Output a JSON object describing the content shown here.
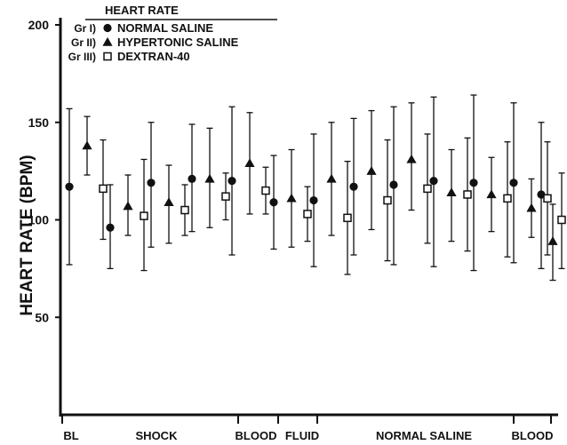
{
  "chart_data": {
    "type": "scatter",
    "title": "HEART RATE",
    "ylabel": "HEART RATE (BPM)",
    "xlabel": "",
    "ylim": [
      0,
      200
    ],
    "yticks": [
      50,
      100,
      150,
      200
    ],
    "grid": false,
    "legend_placement": "top-left",
    "phases": [
      "BL",
      "SHOCK",
      "BLOOD",
      "FLUID",
      "NORMAL SALINE",
      "BLOOD"
    ],
    "series": [
      {
        "name": "NORMAL SALINE",
        "group": "Gr I)",
        "marker": "circle",
        "values": [
          117,
          96,
          119,
          121,
          120,
          109,
          110,
          117,
          118,
          120,
          119,
          119,
          113
        ],
        "upper": [
          157,
          118,
          150,
          149,
          158,
          133,
          144,
          152,
          158,
          163,
          164,
          160,
          150
        ],
        "lower": [
          77,
          75,
          86,
          94,
          82,
          85,
          76,
          82,
          77,
          76,
          74,
          78,
          75
        ]
      },
      {
        "name": "HYPERTONIC SALINE",
        "group": "Gr II)",
        "marker": "triangle",
        "values": [
          138,
          107,
          109,
          121,
          129,
          111,
          121,
          125,
          131,
          114,
          113,
          106,
          89
        ],
        "upper": [
          153,
          123,
          128,
          147,
          155,
          136,
          150,
          156,
          160,
          136,
          132,
          121,
          108
        ],
        "lower": [
          123,
          92,
          88,
          96,
          103,
          86,
          92,
          95,
          105,
          89,
          94,
          91,
          69
        ]
      },
      {
        "name": "DEXTRAN-40",
        "group": "Gr III)",
        "marker": "square",
        "values": [
          116,
          102,
          105,
          112,
          115,
          103,
          101,
          110,
          116,
          113,
          111,
          111,
          100
        ],
        "upper": [
          141,
          131,
          118,
          124,
          127,
          117,
          130,
          141,
          144,
          142,
          140,
          140,
          124
        ],
        "lower": [
          90,
          74,
          92,
          100,
          103,
          89,
          72,
          79,
          88,
          84,
          81,
          82,
          75
        ]
      }
    ]
  }
}
